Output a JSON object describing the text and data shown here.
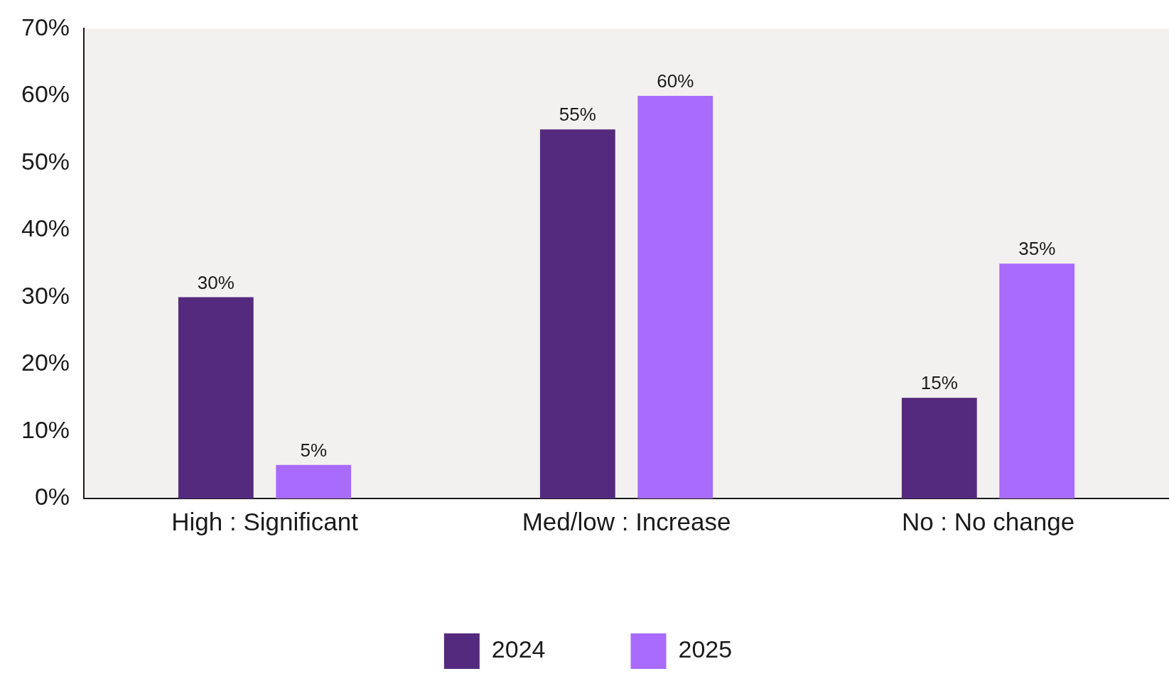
{
  "chart_data": {
    "type": "bar",
    "categories": [
      "High : Significant",
      "Med/low : Increase",
      "No : No change"
    ],
    "series": [
      {
        "name": "2024",
        "color": "#542a7e",
        "values": [
          30,
          55,
          15
        ],
        "value_labels": [
          "30%",
          "55%",
          "15%"
        ]
      },
      {
        "name": "2025",
        "color": "#a86bfc",
        "values": [
          5,
          60,
          35
        ],
        "value_labels": [
          "5%",
          "60%",
          "35%"
        ]
      }
    ],
    "ylim": [
      0,
      70
    ],
    "yticks": [
      {
        "value": 0,
        "label": "0%"
      },
      {
        "value": 10,
        "label": "10%"
      },
      {
        "value": 20,
        "label": "20%"
      },
      {
        "value": 30,
        "label": "30%"
      },
      {
        "value": 40,
        "label": "40%"
      },
      {
        "value": 50,
        "label": "50%"
      },
      {
        "value": 60,
        "label": "60%"
      },
      {
        "value": 70,
        "label": "70%"
      }
    ],
    "grid": false,
    "legend": "bottom"
  }
}
